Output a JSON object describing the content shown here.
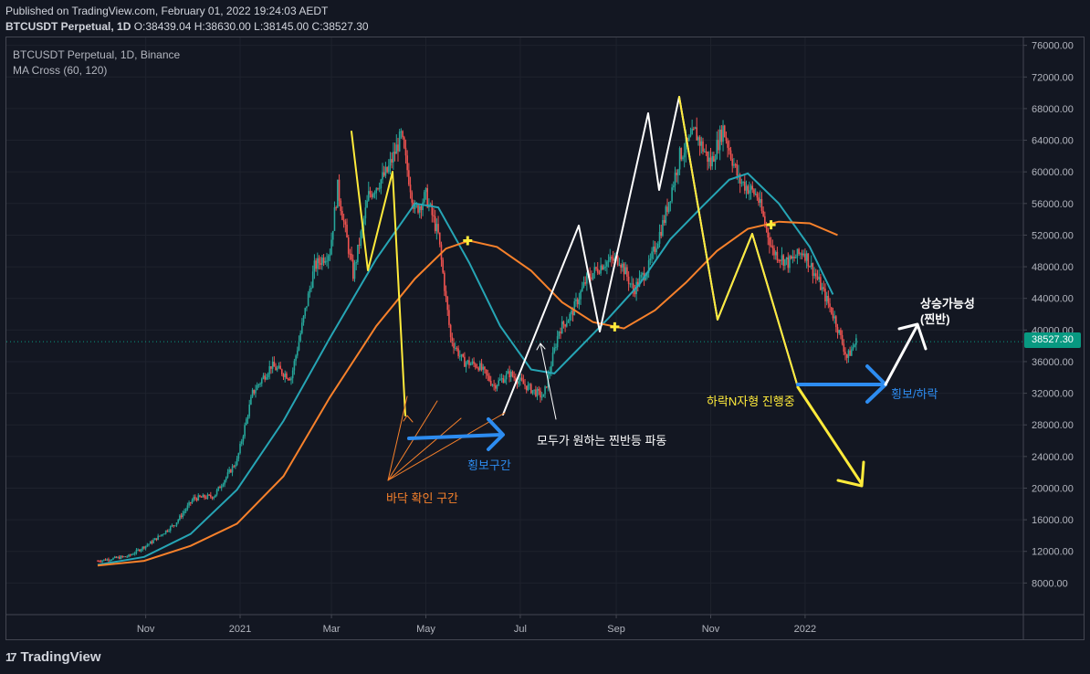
{
  "header": {
    "published": "Published on TradingView.com, February 01, 2022 19:24:03 AEDT",
    "symbol_line": "BTCUSDT Perpetual, 1D",
    "ohlc": "O:38439.04 H:38630.00 L:38145.00 C:38527.30"
  },
  "legend": {
    "line1": "BTCUSDT Perpetual, 1D, Binance",
    "line2": "MA Cross (60, 120)"
  },
  "brand": {
    "name": "TradingView",
    "mark": "17"
  },
  "colors": {
    "background": "#131722",
    "ma60": "#26a5b5",
    "ma120": "#f7812b",
    "up": "#26a69a",
    "down": "#ef5350",
    "yellow": "#ffeb3b",
    "blue": "#2d8cf0",
    "white": "#ffffff",
    "orange_text": "#f7812b",
    "price_tag": "#089981"
  },
  "last_price": "38527.30",
  "annotations": {
    "bottom_zone": "바닥 확인 구간",
    "sideways_zone": "횡보구간",
    "relief_wave": "모두가 원하는 찐반등 파동",
    "n_pattern": "하락N자형 진행중",
    "sideways_down": "횡보/하락",
    "up_possibility_1": "상승가능성",
    "up_possibility_2": "(찐반)"
  },
  "chart_data": {
    "type": "line",
    "title": "BTCUSDT Perpetual, 1D, Binance",
    "y_ticks": [
      "76000.00",
      "72000.00",
      "68000.00",
      "64000.00",
      "60000.00",
      "56000.00",
      "52000.00",
      "48000.00",
      "44000.00",
      "40000.00",
      "36000.00",
      "32000.00",
      "28000.00",
      "24000.00",
      "20000.00",
      "16000.00",
      "12000.00",
      "8000.00"
    ],
    "ylim": [
      4000,
      77000
    ],
    "x_labels": [
      {
        "label": "Nov",
        "day": 31
      },
      {
        "label": "2021",
        "day": 92
      },
      {
        "label": "Mar",
        "day": 151
      },
      {
        "label": "May",
        "day": 212
      },
      {
        "label": "Jul",
        "day": 273
      },
      {
        "label": "Sep",
        "day": 335
      },
      {
        "label": "Nov",
        "day": 396
      },
      {
        "label": "2022",
        "day": 457
      }
    ],
    "x_note": "day 0 = 2020-10-01",
    "xlim": [
      -59,
      598
    ],
    "series": [
      {
        "name": "BTCUSDT",
        "points": [
          [
            0,
            10800
          ],
          [
            20,
            11400
          ],
          [
            35,
            13200
          ],
          [
            50,
            15500
          ],
          [
            62,
            18700
          ],
          [
            75,
            19000
          ],
          [
            90,
            23500
          ],
          [
            100,
            32000
          ],
          [
            112,
            35500
          ],
          [
            125,
            34000
          ],
          [
            140,
            48000
          ],
          [
            150,
            50000
          ],
          [
            155,
            58000
          ],
          [
            165,
            47000
          ],
          [
            175,
            57000
          ],
          [
            187,
            60000
          ],
          [
            196,
            64500
          ],
          [
            205,
            55000
          ],
          [
            212,
            57000
          ],
          [
            220,
            52000
          ],
          [
            228,
            39000
          ],
          [
            236,
            36000
          ],
          [
            246,
            35500
          ],
          [
            256,
            33000
          ],
          [
            266,
            34500
          ],
          [
            276,
            33000
          ],
          [
            288,
            31500
          ],
          [
            298,
            40000
          ],
          [
            306,
            42000
          ],
          [
            316,
            46500
          ],
          [
            327,
            48500
          ],
          [
            337,
            49000
          ],
          [
            346,
            45000
          ],
          [
            356,
            48000
          ],
          [
            366,
            54000
          ],
          [
            376,
            62000
          ],
          [
            386,
            65000
          ],
          [
            396,
            61000
          ],
          [
            404,
            65500
          ],
          [
            414,
            59000
          ],
          [
            426,
            57000
          ],
          [
            436,
            50000
          ],
          [
            446,
            48500
          ],
          [
            456,
            50000
          ],
          [
            466,
            46000
          ],
          [
            476,
            41500
          ],
          [
            484,
            36500
          ],
          [
            490,
            38527
          ]
        ]
      },
      {
        "name": "MA 60",
        "points": [
          [
            0,
            10300
          ],
          [
            30,
            11300
          ],
          [
            60,
            14200
          ],
          [
            90,
            19800
          ],
          [
            120,
            28500
          ],
          [
            150,
            39000
          ],
          [
            180,
            49000
          ],
          [
            205,
            56000
          ],
          [
            220,
            55500
          ],
          [
            240,
            48500
          ],
          [
            260,
            40500
          ],
          [
            280,
            35000
          ],
          [
            295,
            34500
          ],
          [
            310,
            37500
          ],
          [
            330,
            41500
          ],
          [
            350,
            45800
          ],
          [
            370,
            51500
          ],
          [
            390,
            55500
          ],
          [
            408,
            59000
          ],
          [
            420,
            59800
          ],
          [
            440,
            56000
          ],
          [
            460,
            50500
          ],
          [
            475,
            44500
          ]
        ]
      },
      {
        "name": "MA 120",
        "points": [
          [
            0,
            10200
          ],
          [
            30,
            10800
          ],
          [
            60,
            12700
          ],
          [
            90,
            15500
          ],
          [
            120,
            21500
          ],
          [
            150,
            31500
          ],
          [
            180,
            40500
          ],
          [
            205,
            46500
          ],
          [
            225,
            50300
          ],
          [
            240,
            51300
          ],
          [
            258,
            50500
          ],
          [
            280,
            47500
          ],
          [
            300,
            43500
          ],
          [
            320,
            41000
          ],
          [
            340,
            40200
          ],
          [
            360,
            42500
          ],
          [
            380,
            46000
          ],
          [
            400,
            50000
          ],
          [
            420,
            52800
          ],
          [
            440,
            53700
          ],
          [
            460,
            53500
          ],
          [
            478,
            52000
          ]
        ]
      }
    ],
    "markers": [
      [
        239,
        51300
      ],
      [
        334,
        40400
      ],
      [
        435,
        53300
      ]
    ]
  }
}
